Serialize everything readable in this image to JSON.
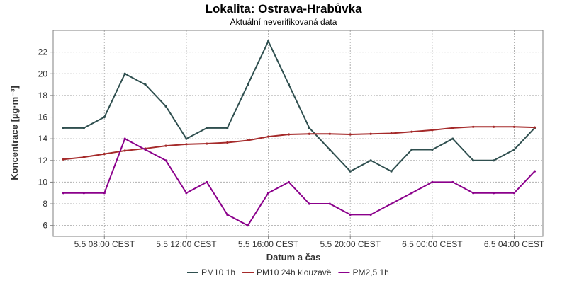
{
  "chart_data": {
    "type": "line",
    "title": "Lokalita: Ostrava-Hrabůvka",
    "subtitle": "Aktuální neverifikovaná data",
    "xlabel": "Datum a čas",
    "ylabel": "Koncentrace [µg·m⁻³]",
    "ylim": [
      5,
      24
    ],
    "yticks": [
      6,
      8,
      10,
      12,
      14,
      16,
      18,
      20,
      22
    ],
    "x_start": "5.5 06:00 CEST",
    "x_step_hours": 1,
    "xticks": [
      {
        "label": "5.5 08:00 CEST",
        "hour": 2
      },
      {
        "label": "5.5 12:00 CEST",
        "hour": 6
      },
      {
        "label": "5.5 16:00 CEST",
        "hour": 10
      },
      {
        "label": "5.5 20:00 CEST",
        "hour": 14
      },
      {
        "label": "6.5 00:00 CEST",
        "hour": 18
      },
      {
        "label": "6.5 04:00 CEST",
        "hour": 22
      }
    ],
    "xlim_hours": [
      -0.5,
      23.4
    ],
    "grid": true,
    "legend_position": "bottom",
    "series": [
      {
        "name": "PM10 1h",
        "color": "#2f4f4f",
        "values": [
          15,
          15,
          16,
          20,
          19,
          17,
          14,
          15,
          15,
          19,
          23,
          19,
          15,
          13,
          11,
          12,
          11,
          13,
          13,
          14,
          12,
          12,
          13,
          15
        ]
      },
      {
        "name": "PM10 24h klouzavě",
        "color": "#a52a2a",
        "values": [
          12.1,
          12.3,
          12.6,
          12.9,
          13.1,
          13.35,
          13.5,
          13.55,
          13.65,
          13.85,
          14.2,
          14.4,
          14.45,
          14.45,
          14.4,
          14.45,
          14.5,
          14.65,
          14.8,
          15.0,
          15.1,
          15.1,
          15.1,
          15.05
        ]
      },
      {
        "name": "PM2,5 1h",
        "color": "#8b008b",
        "values": [
          9,
          9,
          9,
          14,
          13,
          12,
          9,
          10,
          7,
          6,
          9,
          10,
          8,
          8,
          7,
          7,
          8,
          9,
          10,
          10,
          9,
          9,
          9,
          11
        ]
      }
    ]
  }
}
